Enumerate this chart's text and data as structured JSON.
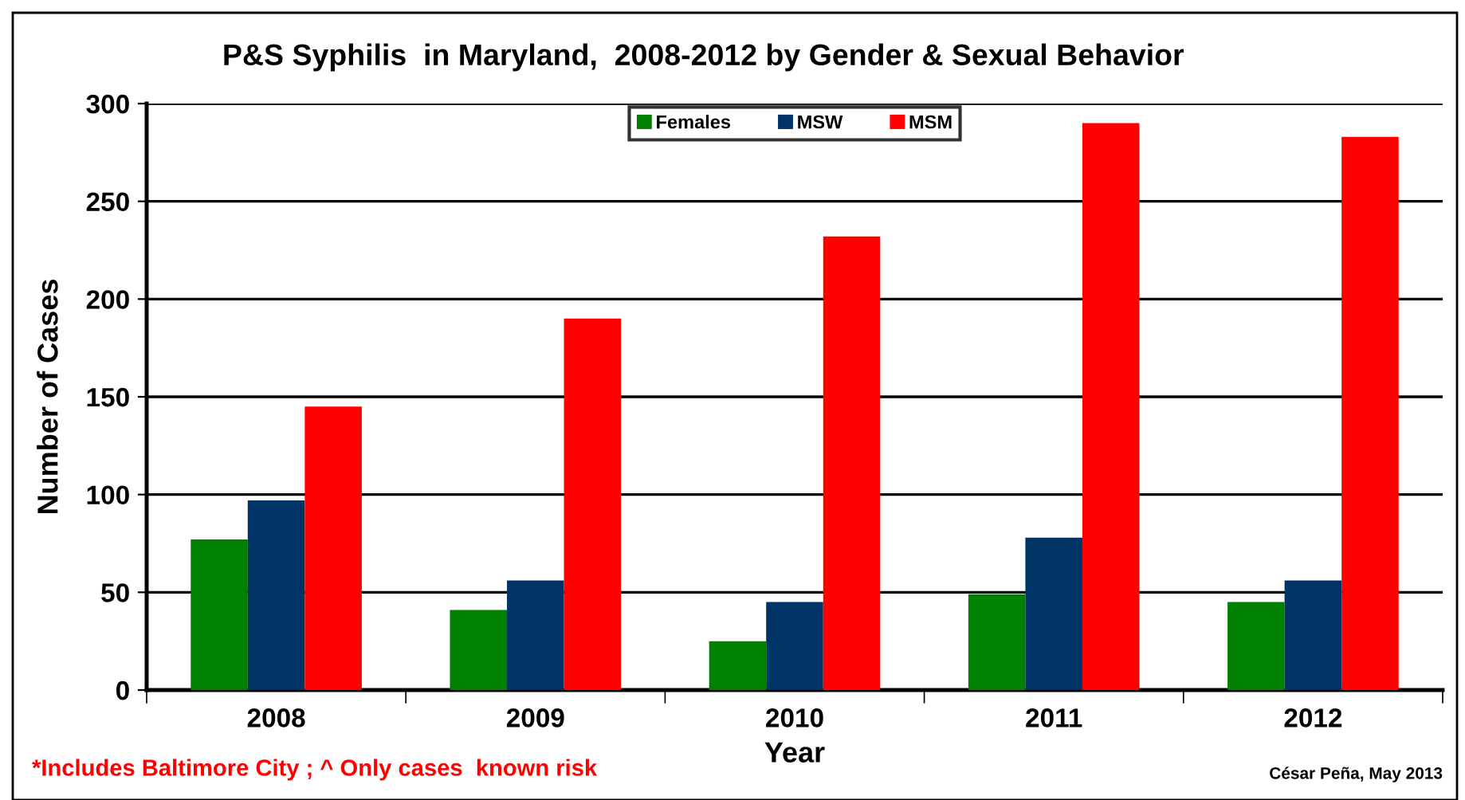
{
  "chart_data": {
    "type": "bar",
    "title": "P&S Syphilis  in Maryland,  2008-2012 by Gender & Sexual Behavior",
    "xlabel": "Year",
    "ylabel": "Number of Cases",
    "categories": [
      "2008",
      "2009",
      "2010",
      "2011",
      "2012"
    ],
    "series": [
      {
        "name": "Females",
        "color": "#008000",
        "values": [
          77,
          41,
          25,
          49,
          45
        ]
      },
      {
        "name": "MSW",
        "color": "#003366",
        "values": [
          97,
          56,
          45,
          78,
          56
        ]
      },
      {
        "name": "MSM",
        "color": "#ff0000",
        "values": [
          145,
          190,
          232,
          290,
          283
        ]
      }
    ],
    "ylim": [
      0,
      300
    ],
    "yticks": [
      0,
      50,
      100,
      150,
      200,
      250,
      300
    ],
    "grid": "y",
    "legend": "top",
    "annotations": [
      "*Includes Baltimore City ; ^ Only cases  known risk",
      "César Peña, May 2013"
    ]
  }
}
